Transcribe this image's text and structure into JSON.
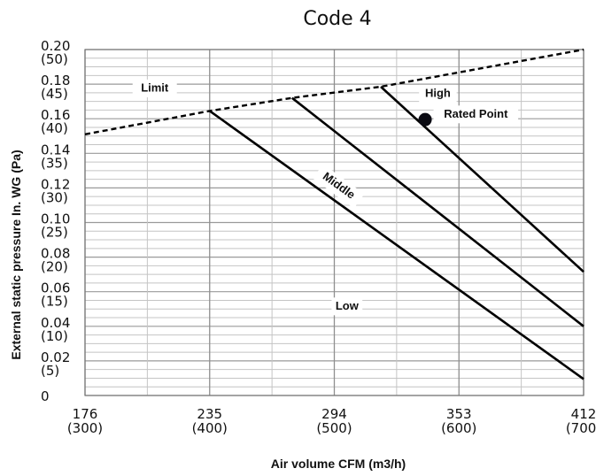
{
  "chart_data": {
    "type": "line",
    "title": "Code 4",
    "xlabel": "Air volume CFM (m3/h)",
    "ylabel": "External static pressure In. WG (Pa)",
    "xlim": [
      176,
      412
    ],
    "ylim": [
      0,
      0.2
    ],
    "grid": true,
    "x_ticks": [
      {
        "value": 176,
        "line1": "176",
        "line2": "(300)"
      },
      {
        "value": 235,
        "line1": "235",
        "line2": "(400)"
      },
      {
        "value": 294,
        "line1": "294",
        "line2": "(500)"
      },
      {
        "value": 353,
        "line1": "353",
        "line2": "(600)"
      },
      {
        "value": 412,
        "line1": "412",
        "line2": "(700)"
      }
    ],
    "y_ticks": [
      {
        "value": 0.2,
        "line1": "0.20",
        "line2": "(50)"
      },
      {
        "value": 0.18,
        "line1": "0.18",
        "line2": "(45)"
      },
      {
        "value": 0.16,
        "line1": "0.16",
        "line2": "(40)"
      },
      {
        "value": 0.14,
        "line1": "0.14",
        "line2": "(35)"
      },
      {
        "value": 0.12,
        "line1": "0.12",
        "line2": "(30)"
      },
      {
        "value": 0.1,
        "line1": "0.10",
        "line2": "(25)"
      },
      {
        "value": 0.08,
        "line1": "0.08",
        "line2": "(20)"
      },
      {
        "value": 0.06,
        "line1": "0.06",
        "line2": "(15)"
      },
      {
        "value": 0.04,
        "line1": "0.04",
        "line2": "(10)"
      },
      {
        "value": 0.02,
        "line1": "0.02",
        "line2": "(5)"
      },
      {
        "value": 0,
        "line1": "0",
        "line2": ""
      }
    ],
    "series": [
      {
        "name": "Limit",
        "style": "dashed",
        "x": [
          176,
          235,
          274,
          316,
          412
        ],
        "y": [
          0.151,
          0.1645,
          0.172,
          0.1785,
          0.2
        ]
      },
      {
        "name": "Low",
        "style": "solid",
        "x": [
          235,
          412
        ],
        "y": [
          0.1645,
          0.0095
        ]
      },
      {
        "name": "Middle",
        "style": "solid",
        "x": [
          274,
          412
        ],
        "y": [
          0.172,
          0.04
        ]
      },
      {
        "name": "High",
        "style": "solid",
        "x": [
          316,
          412
        ],
        "y": [
          0.1785,
          0.0715
        ]
      }
    ],
    "point": {
      "label": "Rated Point",
      "x": 337,
      "y": 0.1595
    },
    "annotations": [
      {
        "text": "Limit",
        "x": 209,
        "y": 0.1775,
        "rotate": 0
      },
      {
        "text": "High",
        "x": 343,
        "y": 0.1745,
        "rotate": 0
      },
      {
        "text": "Rated Point",
        "x": 361,
        "y": 0.1625,
        "rotate": 0
      },
      {
        "text": "Middle",
        "x": 296,
        "y": 0.121,
        "rotate": 36
      },
      {
        "text": "Low",
        "x": 300,
        "y": 0.0515,
        "rotate": 0
      }
    ]
  }
}
